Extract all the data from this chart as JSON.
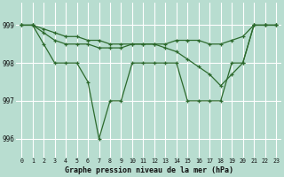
{
  "title": "Graphe pression niveau de la mer (hPa)",
  "bg_color": "#b8ddd0",
  "grid_color": "#ffffff",
  "line_color": "#2d6a2d",
  "hours": [
    0,
    1,
    2,
    3,
    4,
    5,
    6,
    7,
    8,
    9,
    10,
    11,
    12,
    13,
    14,
    15,
    16,
    17,
    18,
    19,
    20,
    21,
    22,
    23
  ],
  "line1_y": [
    999.0,
    999.0,
    998.9,
    998.8,
    998.7,
    998.7,
    998.6,
    998.6,
    998.5,
    998.5,
    998.5,
    998.5,
    998.5,
    998.5,
    998.6,
    998.6,
    998.6,
    998.5,
    998.5,
    998.6,
    998.7,
    999.0,
    999.0,
    999.0
  ],
  "line2_y": [
    999.0,
    999.0,
    998.5,
    998.0,
    998.0,
    998.0,
    997.5,
    996.0,
    997.0,
    997.0,
    998.0,
    998.0,
    998.0,
    998.0,
    998.0,
    997.0,
    997.0,
    997.0,
    997.0,
    998.0,
    998.0,
    999.0,
    999.0,
    999.0
  ],
  "line3_y": [
    999.0,
    999.0,
    998.8,
    998.6,
    998.5,
    998.5,
    998.5,
    998.4,
    998.4,
    998.4,
    998.5,
    998.5,
    998.5,
    998.4,
    998.3,
    998.1,
    997.9,
    997.7,
    997.4,
    997.7,
    998.0,
    999.0,
    999.0,
    999.0
  ],
  "ylim_lo": 995.5,
  "ylim_hi": 999.6,
  "yticks": [
    996,
    997,
    998,
    999
  ],
  "x_labels": [
    "0",
    "1",
    "2",
    "3",
    "4",
    "5",
    "6",
    "7",
    "8",
    "9",
    "10",
    "11",
    "12",
    "13",
    "14",
    "15",
    "16",
    "17",
    "18",
    "19",
    "20",
    "21",
    "22",
    "23"
  ]
}
